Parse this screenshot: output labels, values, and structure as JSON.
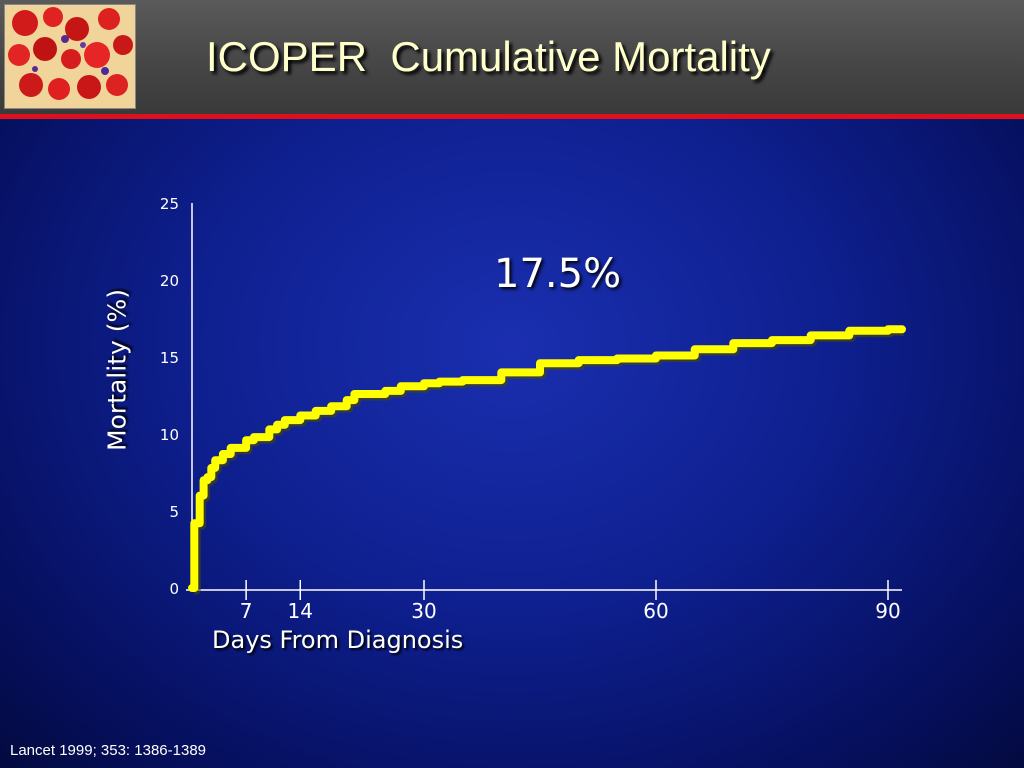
{
  "slide": {
    "title": "ICOPER  Cumulative Mortality",
    "citation": "Lancet 1999; 353: 1386-1389"
  },
  "colors": {
    "background": "#0e1f8e",
    "header": "#4a4a4a",
    "header_rule": "#e0101a",
    "curve": "#ffff00",
    "title_text": "#ffffcc",
    "axis": "#ffffff"
  },
  "chart_data": {
    "type": "line",
    "step": true,
    "title": "",
    "annotation": "17.5%",
    "ylabel": "Mortality (%)",
    "xlabel": "Days From Diagnosis",
    "y_ticks": [
      0,
      5,
      10,
      15,
      20,
      25
    ],
    "x_ticks": [
      7,
      14,
      30,
      60,
      90
    ],
    "xlim": [
      0,
      90
    ],
    "ylim": [
      0,
      25
    ],
    "grid": false,
    "series": [
      {
        "x": [
          0,
          0.3,
          1,
          1.5,
          2,
          2.5,
          3,
          4,
          5,
          7,
          8,
          10,
          11,
          12,
          14,
          16,
          18,
          20,
          21,
          23,
          25,
          27,
          30,
          32,
          35,
          40,
          45,
          50,
          55,
          60,
          65,
          70,
          75,
          80,
          85,
          90
        ],
        "y": [
          0,
          4.2,
          6.0,
          7.0,
          7.2,
          7.8,
          8.3,
          8.7,
          9.1,
          9.6,
          9.8,
          10.3,
          10.6,
          10.9,
          11.2,
          11.5,
          11.8,
          12.2,
          12.6,
          12.6,
          12.8,
          13.1,
          13.3,
          13.4,
          13.5,
          14.0,
          14.6,
          14.8,
          14.9,
          15.1,
          15.5,
          15.9,
          16.1,
          16.4,
          16.7,
          16.8
        ]
      }
    ]
  }
}
